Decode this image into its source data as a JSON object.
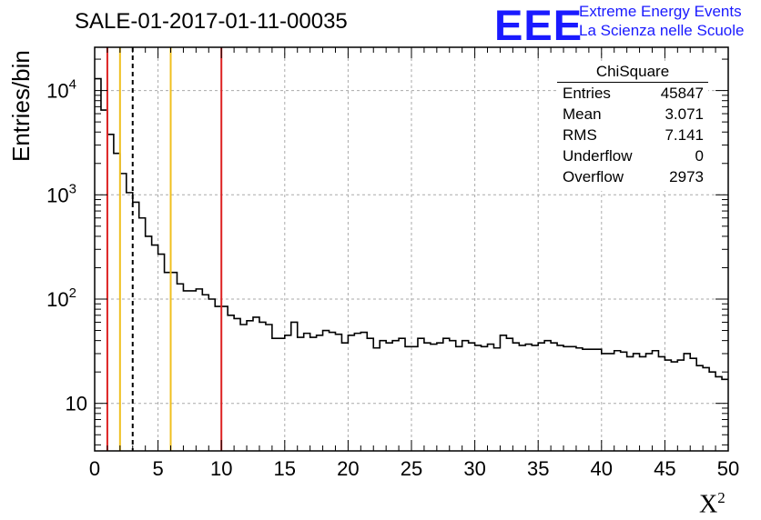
{
  "header": {
    "title": "SALE-01-2017-01-11-00035",
    "logo_text": "EEE",
    "logo_line1": "Extreme Energy Events",
    "logo_line2": "La Scienza nelle Scuole"
  },
  "stats": {
    "title": "ChiSquare",
    "rows": [
      {
        "label": "Entries",
        "value": "45847"
      },
      {
        "label": "Mean",
        "value": "3.071"
      },
      {
        "label": "RMS",
        "value": "7.141"
      },
      {
        "label": "Underflow",
        "value": "0"
      },
      {
        "label": "Overflow",
        "value": "2973"
      }
    ]
  },
  "chart_data": {
    "type": "histogram",
    "title": "SALE-01-2017-01-11-00035",
    "xlabel": "X²",
    "ylabel": "Entries/bin",
    "xlim": [
      0,
      50
    ],
    "ylim_log": [
      3.5,
      26000
    ],
    "yscale": "log",
    "bin_width": 0.5,
    "x_tick_labels": [
      "0",
      "5",
      "10",
      "15",
      "20",
      "25",
      "30",
      "35",
      "40",
      "45",
      "50"
    ],
    "y_tick_labels": [
      {
        "value": 10,
        "label": "10"
      },
      {
        "value": 100,
        "label": "10",
        "exp": "2"
      },
      {
        "value": 1000,
        "label": "10",
        "exp": "3"
      },
      {
        "value": 10000,
        "label": "10",
        "exp": "4"
      }
    ],
    "values": [
      13000,
      6500,
      3800,
      2500,
      1600,
      1050,
      850,
      600,
      400,
      330,
      270,
      180,
      180,
      140,
      120,
      120,
      125,
      110,
      100,
      85,
      85,
      70,
      65,
      57,
      62,
      67,
      60,
      57,
      42,
      42,
      45,
      60,
      43,
      47,
      43,
      45,
      50,
      48,
      46,
      38,
      45,
      47,
      48,
      42,
      34,
      40,
      38,
      40,
      42,
      35,
      35,
      42,
      38,
      37,
      38,
      42,
      40,
      35,
      40,
      38,
      36,
      35,
      37,
      34,
      45,
      42,
      38,
      36,
      37,
      36,
      38,
      40,
      38,
      36,
      35,
      35,
      34,
      33,
      33,
      33,
      30,
      30,
      32,
      31,
      28,
      30,
      28,
      30,
      32,
      28,
      26,
      25,
      26,
      30,
      27,
      23,
      22,
      20,
      18,
      17
    ],
    "vertical_lines": [
      {
        "x": 1,
        "color": "#dd2222",
        "style": "solid"
      },
      {
        "x": 2,
        "color": "#f0c020",
        "style": "solid"
      },
      {
        "x": 3,
        "color": "#000000",
        "style": "dashed"
      },
      {
        "x": 6,
        "color": "#f0c020",
        "style": "solid"
      },
      {
        "x": 10,
        "color": "#dd2222",
        "style": "solid"
      }
    ],
    "grid": true
  }
}
